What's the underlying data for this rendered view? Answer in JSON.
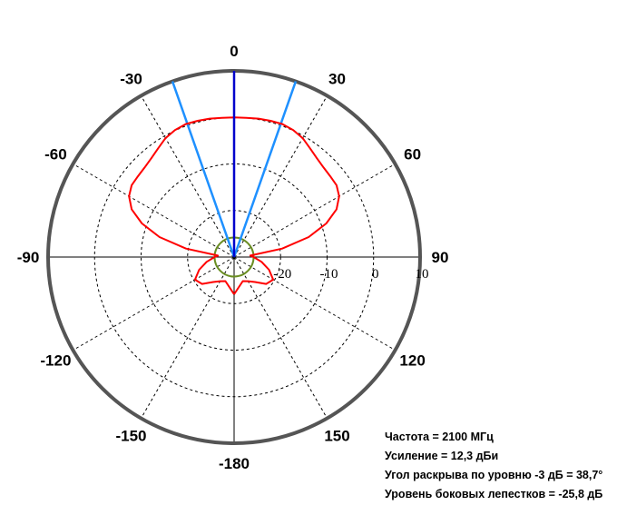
{
  "chart_data": {
    "type": "polar-line",
    "angle_tick_labels": [
      "0",
      "30",
      "60",
      "90",
      "120",
      "150",
      "-180",
      "-150",
      "-120",
      "-90",
      "-60",
      "-30"
    ],
    "angle_ticks_deg": [
      0,
      30,
      60,
      90,
      120,
      150,
      180,
      -150,
      -120,
      -90,
      -60,
      -30
    ],
    "radial_ticks": [
      -20,
      -10,
      0,
      10
    ],
    "radial_tick_labels": [
      "-20",
      "-10",
      "0",
      "10"
    ],
    "radial_range": [
      -30,
      10
    ],
    "grid": true,
    "colors": {
      "pattern": "#ff0000",
      "main_direction": "#0000cc",
      "half_power_lines": "#1e90ff",
      "reference_circle": "#6b8e23",
      "outer_circle": "#555555",
      "grid": "#000000"
    },
    "half_power_angles_deg": [
      -19.35,
      19.35
    ],
    "reference_circle_level": -25.8,
    "series": [
      {
        "angles_deg": [
          -180,
          -160,
          -150,
          -140,
          -130,
          -120,
          -110,
          -100,
          -90,
          -85,
          -80,
          -75,
          -70,
          -65,
          -60,
          -55,
          -50,
          -45,
          -40,
          -35,
          -30,
          -25,
          -20,
          -15,
          -10,
          -5,
          0,
          5,
          10,
          15,
          20,
          25,
          30,
          35,
          40,
          45,
          50,
          55,
          60,
          65,
          70,
          75,
          80,
          85,
          90,
          100,
          110,
          120,
          130,
          140,
          150,
          160,
          180
        ],
        "values": [
          -22,
          -24.5,
          -24,
          -23,
          -21,
          -20.3,
          -22,
          -24,
          -25.8,
          -26.5,
          -19.5,
          -13.4,
          -8.9,
          -5.7,
          -3.9,
          -3.1,
          -3.0,
          -2.8,
          -2.3,
          -1.5,
          -0.5,
          0.1,
          0.4,
          0.3,
          0.2,
          0.0,
          0.0,
          0.0,
          0.2,
          0.3,
          0.4,
          0.1,
          -0.5,
          -1.5,
          -2.3,
          -2.8,
          -3.0,
          -3.1,
          -3.9,
          -5.7,
          -8.9,
          -13.4,
          -19.5,
          -26.5,
          -25.8,
          -24,
          -22,
          -20.3,
          -21,
          -23,
          -24,
          -24.5,
          -22
        ]
      }
    ]
  },
  "info": {
    "frequency": "Частота = 2100 МГц",
    "gain": "Усиление = 12,3 дБи",
    "beamwidth": "Угол раскрыва по уровню -3 дБ = 38,7°",
    "sidelobe": "Уровень боковых лепестков = -25,8 дБ"
  }
}
